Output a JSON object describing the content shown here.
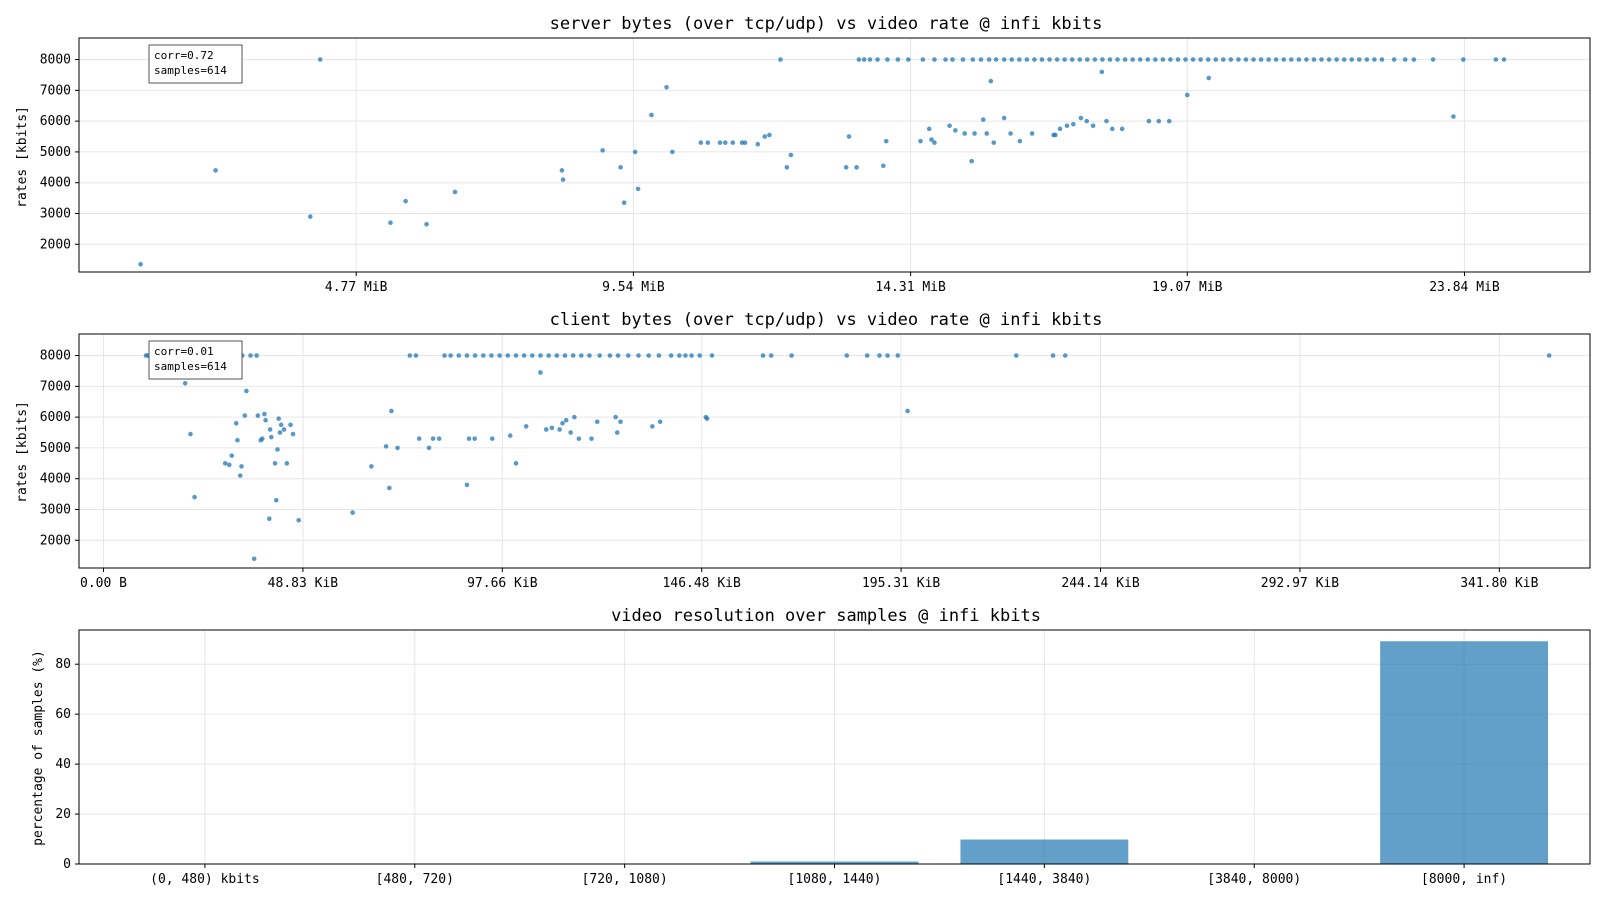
{
  "colors": {
    "accent": "#1f77b4",
    "frame": "#000000",
    "grid": "#e6e6e6"
  },
  "chart_data": [
    {
      "type": "scatter",
      "title": "server bytes (over tcp/udp) vs video rate @ infi kbits",
      "ylabel": "rates [kbits]",
      "xlabel": "",
      "xlim": [
        0,
        26.0
      ],
      "x_unit": "MiB",
      "ylim": [
        1100,
        8700
      ],
      "xticks": [
        4.77,
        9.54,
        14.31,
        19.07,
        23.84
      ],
      "xtick_labels": [
        "4.77 MiB",
        "9.54 MiB",
        "14.31 MiB",
        "19.07 MiB",
        "23.84 MiB"
      ],
      "yticks": [
        2000,
        3000,
        4000,
        5000,
        6000,
        7000,
        8000
      ],
      "ytick_labels": [
        "2000",
        "3000",
        "4000",
        "5000",
        "6000",
        "7000",
        "8000"
      ],
      "grid": true,
      "stats": {
        "corr": "corr=0.72",
        "samples": "samples=614"
      },
      "points": [
        [
          1.06,
          1350
        ],
        [
          2.35,
          4400
        ],
        [
          3.98,
          2900
        ],
        [
          4.15,
          8000
        ],
        [
          5.36,
          2700
        ],
        [
          5.62,
          3400
        ],
        [
          5.98,
          2650
        ],
        [
          6.47,
          3700
        ],
        [
          8.31,
          4400
        ],
        [
          8.33,
          4100
        ],
        [
          9.01,
          5050
        ],
        [
          9.32,
          4500
        ],
        [
          9.38,
          3350
        ],
        [
          9.57,
          5000
        ],
        [
          9.62,
          3800
        ],
        [
          9.85,
          6200
        ],
        [
          10.11,
          7100
        ],
        [
          10.21,
          5000
        ],
        [
          10.7,
          5300
        ],
        [
          10.82,
          5300
        ],
        [
          11.03,
          5300
        ],
        [
          11.12,
          5300
        ],
        [
          11.25,
          5300
        ],
        [
          11.41,
          5300
        ],
        [
          11.46,
          5300
        ],
        [
          11.68,
          5250
        ],
        [
          11.8,
          5500
        ],
        [
          11.88,
          5550
        ],
        [
          12.07,
          8000
        ],
        [
          12.18,
          4500
        ],
        [
          12.25,
          4900
        ],
        [
          13.2,
          4500
        ],
        [
          13.25,
          5500
        ],
        [
          13.38,
          4500
        ],
        [
          13.84,
          4550
        ],
        [
          13.89,
          5350
        ],
        [
          14.48,
          5350
        ],
        [
          14.63,
          5750
        ],
        [
          14.67,
          5400
        ],
        [
          14.72,
          5300
        ],
        [
          14.98,
          5850
        ],
        [
          15.08,
          5700
        ],
        [
          15.24,
          5600
        ],
        [
          15.36,
          4700
        ],
        [
          15.41,
          5600
        ],
        [
          15.56,
          6050
        ],
        [
          15.62,
          5600
        ],
        [
          15.74,
          5300
        ],
        [
          15.92,
          6100
        ],
        [
          16.03,
          5600
        ],
        [
          16.19,
          5350
        ],
        [
          16.4,
          5600
        ],
        [
          16.77,
          5550
        ],
        [
          16.8,
          5550
        ],
        [
          16.88,
          5750
        ],
        [
          17.0,
          5850
        ],
        [
          17.11,
          5900
        ],
        [
          17.24,
          6100
        ],
        [
          17.34,
          6000
        ],
        [
          17.45,
          5850
        ],
        [
          17.68,
          6000
        ],
        [
          17.78,
          5750
        ],
        [
          17.95,
          5750
        ],
        [
          18.41,
          6000
        ],
        [
          18.58,
          6000
        ],
        [
          18.76,
          6000
        ],
        [
          19.07,
          6850
        ],
        [
          19.44,
          7400
        ],
        [
          23.65,
          6150
        ],
        [
          17.6,
          7600
        ],
        [
          15.69,
          7300
        ],
        [
          13.42,
          8000
        ],
        [
          13.51,
          8000
        ],
        [
          13.61,
          8000
        ],
        [
          13.74,
          8000
        ],
        [
          13.91,
          8000
        ],
        [
          14.09,
          8000
        ],
        [
          14.27,
          8000
        ],
        [
          14.52,
          8000
        ],
        [
          14.72,
          8000
        ],
        [
          14.91,
          8000
        ],
        [
          15.03,
          8000
        ],
        [
          15.21,
          8000
        ],
        [
          15.38,
          8000
        ],
        [
          15.52,
          8000
        ],
        [
          15.66,
          8000
        ],
        [
          15.78,
          8000
        ],
        [
          15.92,
          8000
        ],
        [
          16.05,
          8000
        ],
        [
          16.18,
          8000
        ],
        [
          16.31,
          8000
        ],
        [
          16.44,
          8000
        ],
        [
          16.57,
          8000
        ],
        [
          16.7,
          8000
        ],
        [
          16.83,
          8000
        ],
        [
          16.96,
          8000
        ],
        [
          17.09,
          8000
        ],
        [
          17.22,
          8000
        ],
        [
          17.35,
          8000
        ],
        [
          17.48,
          8000
        ],
        [
          17.61,
          8000
        ],
        [
          17.74,
          8000
        ],
        [
          17.87,
          8000
        ],
        [
          18.0,
          8000
        ],
        [
          18.13,
          8000
        ],
        [
          18.26,
          8000
        ],
        [
          18.39,
          8000
        ],
        [
          18.52,
          8000
        ],
        [
          18.65,
          8000
        ],
        [
          18.78,
          8000
        ],
        [
          18.91,
          8000
        ],
        [
          19.04,
          8000
        ],
        [
          19.17,
          8000
        ],
        [
          19.3,
          8000
        ],
        [
          19.43,
          8000
        ],
        [
          19.56,
          8000
        ],
        [
          19.69,
          8000
        ],
        [
          19.82,
          8000
        ],
        [
          19.95,
          8000
        ],
        [
          20.08,
          8000
        ],
        [
          20.21,
          8000
        ],
        [
          20.34,
          8000
        ],
        [
          20.47,
          8000
        ],
        [
          20.6,
          8000
        ],
        [
          20.73,
          8000
        ],
        [
          20.86,
          8000
        ],
        [
          20.99,
          8000
        ],
        [
          21.12,
          8000
        ],
        [
          21.25,
          8000
        ],
        [
          21.38,
          8000
        ],
        [
          21.51,
          8000
        ],
        [
          21.64,
          8000
        ],
        [
          21.77,
          8000
        ],
        [
          21.9,
          8000
        ],
        [
          22.03,
          8000
        ],
        [
          22.16,
          8000
        ],
        [
          22.29,
          8000
        ],
        [
          22.42,
          8000
        ],
        [
          22.63,
          8000
        ],
        [
          22.82,
          8000
        ],
        [
          22.97,
          8000
        ],
        [
          23.3,
          8000
        ],
        [
          23.82,
          8000
        ],
        [
          24.38,
          8000
        ],
        [
          24.52,
          8000
        ]
      ]
    },
    {
      "type": "scatter",
      "title": "client bytes (over tcp/udp) vs video rate @ infi kbits",
      "ylabel": "rates [kbits]",
      "xlabel": "",
      "xlim": [
        -6.0,
        364.0
      ],
      "x_unit": "KiB",
      "ylim": [
        1100,
        8700
      ],
      "xticks": [
        0.0,
        48.83,
        97.66,
        146.48,
        195.31,
        244.14,
        292.97,
        341.8
      ],
      "xtick_labels": [
        "0.00 B",
        "48.83 KiB",
        "97.66 KiB",
        "146.48 KiB",
        "195.31 KiB",
        "244.14 KiB",
        "292.97 KiB",
        "341.80 KiB"
      ],
      "yticks": [
        2000,
        3000,
        4000,
        5000,
        6000,
        7000,
        8000
      ],
      "ytick_labels": [
        "2000",
        "3000",
        "4000",
        "5000",
        "6000",
        "7000",
        "8000"
      ],
      "grid": true,
      "stats": {
        "corr": "corr=0.01",
        "samples": "samples=614"
      },
      "points": [
        [
          10.4,
          8000
        ],
        [
          20.0,
          7100
        ],
        [
          21.3,
          5450
        ],
        [
          22.3,
          3400
        ],
        [
          29.8,
          4500
        ],
        [
          30.8,
          4450
        ],
        [
          31.4,
          4750
        ],
        [
          32.5,
          5800
        ],
        [
          32.8,
          5250
        ],
        [
          33.5,
          4100
        ],
        [
          33.8,
          4400
        ],
        [
          34.6,
          6050
        ],
        [
          36.9,
          1400
        ],
        [
          37.8,
          6050
        ],
        [
          38.5,
          5250
        ],
        [
          38.9,
          5300
        ],
        [
          39.4,
          6100
        ],
        [
          39.7,
          5900
        ],
        [
          40.6,
          2700
        ],
        [
          40.8,
          5600
        ],
        [
          41.1,
          5350
        ],
        [
          42.0,
          4500
        ],
        [
          42.3,
          3300
        ],
        [
          42.6,
          4950
        ],
        [
          42.9,
          5950
        ],
        [
          43.2,
          5500
        ],
        [
          43.5,
          5750
        ],
        [
          44.2,
          5600
        ],
        [
          44.9,
          4500
        ],
        [
          45.8,
          5750
        ],
        [
          46.4,
          5450
        ],
        [
          47.8,
          2650
        ],
        [
          35.0,
          6850
        ],
        [
          61.0,
          2900
        ],
        [
          65.6,
          4400
        ],
        [
          69.2,
          5050
        ],
        [
          70.0,
          3700
        ],
        [
          70.5,
          6200
        ],
        [
          72.0,
          5000
        ],
        [
          77.3,
          5300
        ],
        [
          79.7,
          5000
        ],
        [
          80.7,
          5300
        ],
        [
          82.2,
          5300
        ],
        [
          89.0,
          3800
        ],
        [
          89.5,
          5300
        ],
        [
          90.9,
          5300
        ],
        [
          95.2,
          5300
        ],
        [
          99.6,
          5400
        ],
        [
          101.0,
          4500
        ],
        [
          103.5,
          5700
        ],
        [
          107.0,
          7450
        ],
        [
          108.4,
          5600
        ],
        [
          109.8,
          5650
        ],
        [
          111.7,
          5600
        ],
        [
          112.4,
          5800
        ],
        [
          113.3,
          5900
        ],
        [
          114.4,
          5500
        ],
        [
          115.3,
          6000
        ],
        [
          116.4,
          5300
        ],
        [
          119.5,
          5300
        ],
        [
          120.9,
          5850
        ],
        [
          125.4,
          6000
        ],
        [
          125.8,
          5500
        ],
        [
          126.6,
          5850
        ],
        [
          134.4,
          5700
        ],
        [
          136.3,
          5850
        ],
        [
          147.8,
          5950
        ],
        [
          147.5,
          6000
        ],
        [
          196.9,
          6200
        ],
        [
          10.9,
          8000
        ],
        [
          20.5,
          8000
        ],
        [
          22.0,
          8000
        ],
        [
          24.0,
          8000
        ],
        [
          26.0,
          8000
        ],
        [
          28.0,
          8000
        ],
        [
          30.0,
          8000
        ],
        [
          32.0,
          8000
        ],
        [
          34.0,
          8000
        ],
        [
          36.0,
          8000
        ],
        [
          37.5,
          8000
        ],
        [
          75.0,
          8000
        ],
        [
          76.5,
          8000
        ],
        [
          83.5,
          8000
        ],
        [
          85.0,
          8000
        ],
        [
          87.0,
          8000
        ],
        [
          89.0,
          8000
        ],
        [
          91.0,
          8000
        ],
        [
          93.0,
          8000
        ],
        [
          95.0,
          8000
        ],
        [
          97.0,
          8000
        ],
        [
          99.0,
          8000
        ],
        [
          101.0,
          8000
        ],
        [
          103.0,
          8000
        ],
        [
          105.0,
          8000
        ],
        [
          107.0,
          8000
        ],
        [
          109.0,
          8000
        ],
        [
          111.0,
          8000
        ],
        [
          113.0,
          8000
        ],
        [
          115.0,
          8000
        ],
        [
          117.0,
          8000
        ],
        [
          119.0,
          8000
        ],
        [
          121.5,
          8000
        ],
        [
          124.0,
          8000
        ],
        [
          126.0,
          8000
        ],
        [
          128.5,
          8000
        ],
        [
          131.0,
          8000
        ],
        [
          133.5,
          8000
        ],
        [
          136.0,
          8000
        ],
        [
          139.0,
          8000
        ],
        [
          141.0,
          8000
        ],
        [
          142.5,
          8000
        ],
        [
          144.0,
          8000
        ],
        [
          146.0,
          8000
        ],
        [
          149.0,
          8000
        ],
        [
          161.5,
          8000
        ],
        [
          163.5,
          8000
        ],
        [
          168.5,
          8000
        ],
        [
          182.0,
          8000
        ],
        [
          187.0,
          8000
        ],
        [
          190.0,
          8000
        ],
        [
          192.0,
          8000
        ],
        [
          194.5,
          8000
        ],
        [
          223.5,
          8000
        ],
        [
          232.5,
          8000
        ],
        [
          235.5,
          8000
        ],
        [
          354.0,
          8000
        ]
      ]
    },
    {
      "type": "bar",
      "title": "video resolution over samples @ infi kbits",
      "ylabel": "percentage of samples (%)",
      "xlabel": "",
      "categories": [
        "(0, 480) kbits",
        "[480, 720)",
        "[720, 1080)",
        "[1080, 1440)",
        "[1440, 3840)",
        "[3840, 8000)",
        "[8000, inf)"
      ],
      "values": [
        0.0,
        0.0,
        0.0,
        1.0,
        9.8,
        0.0,
        89.2
      ],
      "ylim": [
        0,
        93.7
      ],
      "yticks": [
        0,
        20,
        40,
        60,
        80
      ],
      "ytick_labels": [
        "0",
        "20",
        "40",
        "60",
        "80"
      ],
      "grid": true
    }
  ]
}
